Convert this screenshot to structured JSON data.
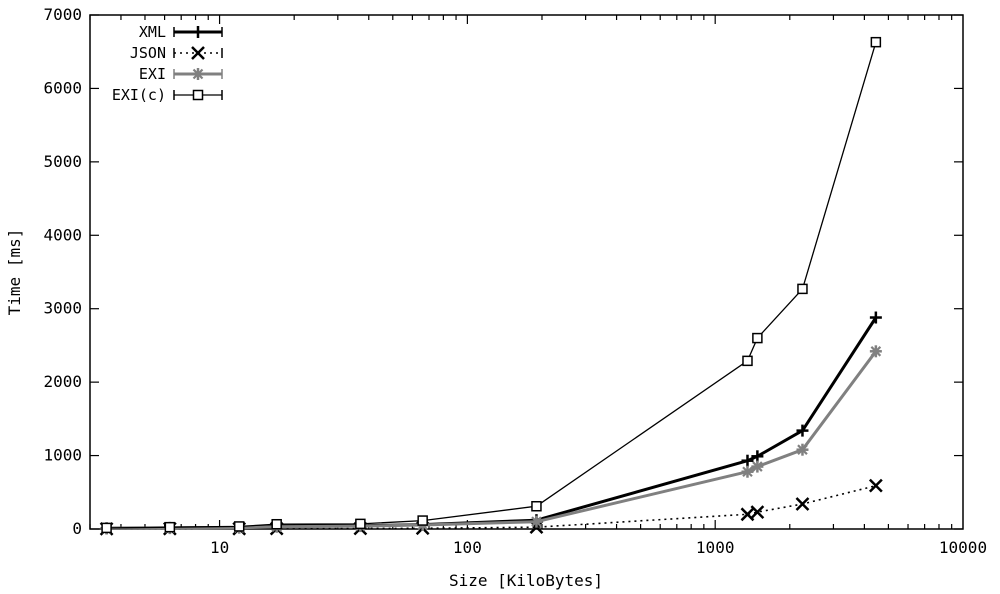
{
  "chart_data": {
    "type": "line",
    "title": "",
    "xlabel": "Size [KiloBytes]",
    "ylabel": "Time [ms]",
    "xscale": "log",
    "xlim": [
      3,
      10000
    ],
    "ylim": [
      0,
      7000
    ],
    "x_ticks": [
      10,
      100,
      1000,
      10000
    ],
    "x_tick_labels": [
      "10",
      "100",
      "1000",
      "10000"
    ],
    "y_ticks": [
      0,
      1000,
      2000,
      3000,
      4000,
      5000,
      6000,
      7000
    ],
    "y_tick_labels": [
      "0",
      "1000",
      "2000",
      "3000",
      "4000",
      "5000",
      "6000",
      "7000"
    ],
    "grid": false,
    "legend_position": "top-left",
    "series": [
      {
        "name": "XML",
        "color": "#000000",
        "line_style": "solid-thick",
        "marker": "plus",
        "points": [
          [
            3.5,
            10
          ],
          [
            6.3,
            15
          ],
          [
            12,
            20
          ],
          [
            17,
            40
          ],
          [
            37,
            45
          ],
          [
            66,
            60
          ],
          [
            190,
            120
          ],
          [
            1350,
            930
          ],
          [
            1480,
            990
          ],
          [
            2250,
            1340
          ],
          [
            4450,
            2880
          ]
        ]
      },
      {
        "name": "JSON",
        "color": "#000000",
        "line_style": "dotted",
        "marker": "cross",
        "points": [
          [
            3.5,
            2
          ],
          [
            6.3,
            3
          ],
          [
            12,
            4
          ],
          [
            17,
            5
          ],
          [
            37,
            7
          ],
          [
            66,
            10
          ],
          [
            190,
            25
          ],
          [
            1350,
            200
          ],
          [
            1480,
            230
          ],
          [
            2250,
            340
          ],
          [
            4450,
            590
          ]
        ]
      },
      {
        "name": "EXI",
        "color": "#808080",
        "line_style": "solid-thick",
        "marker": "star",
        "points": [
          [
            3.5,
            8
          ],
          [
            6.3,
            12
          ],
          [
            12,
            18
          ],
          [
            17,
            30
          ],
          [
            37,
            40
          ],
          [
            66,
            55
          ],
          [
            190,
            100
          ],
          [
            1350,
            780
          ],
          [
            1480,
            850
          ],
          [
            2250,
            1080
          ],
          [
            4450,
            2420
          ]
        ]
      },
      {
        "name": "EXI(c)",
        "color": "#000000",
        "line_style": "solid-thin",
        "marker": "square",
        "points": [
          [
            3.5,
            15
          ],
          [
            6.3,
            25
          ],
          [
            12,
            35
          ],
          [
            17,
            65
          ],
          [
            37,
            70
          ],
          [
            66,
            115
          ],
          [
            190,
            310
          ],
          [
            1350,
            2290
          ],
          [
            1480,
            2600
          ],
          [
            2250,
            3270
          ],
          [
            4450,
            6630
          ]
        ]
      }
    ]
  }
}
